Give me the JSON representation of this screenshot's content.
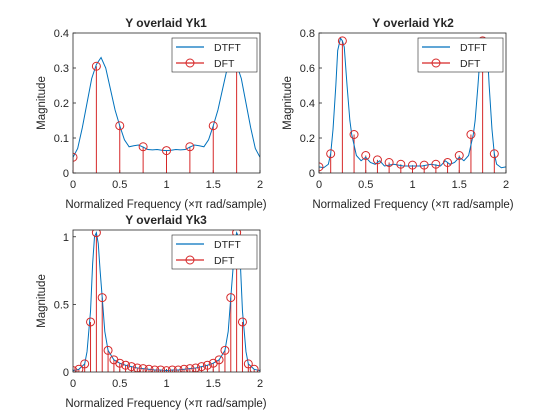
{
  "chart_data": [
    {
      "type": "line",
      "title": "Y overlaid Yk1",
      "xlabel": "Normalized Frequency (×π rad/sample)",
      "ylabel": "Magnitude",
      "xlim": [
        0,
        2
      ],
      "ylim": [
        0,
        0.4
      ],
      "xticks": [
        0,
        0.5,
        1,
        1.5,
        2
      ],
      "xtick_labels": [
        "0",
        "0.5",
        "1",
        "1.5",
        "2"
      ],
      "yticks": [
        0,
        0.1,
        0.2,
        0.3,
        0.4
      ],
      "ytick_labels": [
        "0",
        "0.1",
        "0.2",
        "0.3",
        "0.4"
      ],
      "legend": {
        "location": "top-right",
        "entries": [
          "DTFT",
          "DFT"
        ]
      },
      "series": [
        {
          "name": "DTFT",
          "kind": "line",
          "color": "#0072BD",
          "x": [
            0,
            0.05,
            0.1,
            0.15,
            0.2,
            0.25,
            0.3,
            0.35,
            0.4,
            0.45,
            0.5,
            0.55,
            0.6,
            0.65,
            0.7,
            0.75,
            0.8,
            0.85,
            0.9,
            0.95,
            1.0,
            1.05,
            1.1,
            1.15,
            1.2,
            1.25,
            1.3,
            1.35,
            1.4,
            1.45,
            1.5,
            1.55,
            1.6,
            1.65,
            1.7,
            1.75,
            1.8,
            1.85,
            1.9,
            1.95,
            2.0
          ],
          "y": [
            0.045,
            0.07,
            0.13,
            0.2,
            0.27,
            0.31,
            0.33,
            0.3,
            0.24,
            0.18,
            0.135,
            0.095,
            0.075,
            0.078,
            0.08,
            0.074,
            0.067,
            0.066,
            0.067,
            0.065,
            0.064,
            0.065,
            0.067,
            0.066,
            0.067,
            0.074,
            0.08,
            0.078,
            0.075,
            0.095,
            0.135,
            0.18,
            0.24,
            0.3,
            0.33,
            0.31,
            0.27,
            0.2,
            0.13,
            0.07,
            0.045
          ]
        },
        {
          "name": "DFT",
          "kind": "stem",
          "color": "#D62728",
          "x": [
            0,
            0.25,
            0.5,
            0.75,
            1.0,
            1.25,
            1.5,
            1.75
          ],
          "y": [
            0.045,
            0.305,
            0.135,
            0.075,
            0.064,
            0.075,
            0.135,
            0.305
          ]
        }
      ]
    },
    {
      "type": "line",
      "title": "Y overlaid Yk2",
      "xlabel": "Normalized Frequency (×π rad/sample)",
      "ylabel": "Magnitude",
      "xlim": [
        0,
        2
      ],
      "ylim": [
        0,
        0.8
      ],
      "xticks": [
        0,
        0.5,
        1,
        1.5,
        2
      ],
      "xtick_labels": [
        "0",
        "0.5",
        "1",
        "1.5",
        "2"
      ],
      "yticks": [
        0,
        0.2,
        0.4,
        0.6,
        0.8
      ],
      "ytick_labels": [
        "0",
        "0.2",
        "0.4",
        "0.6",
        "0.8"
      ],
      "legend": {
        "location": "top-right",
        "entries": [
          "DTFT",
          "DFT"
        ]
      },
      "series": [
        {
          "name": "DTFT",
          "kind": "line",
          "color": "#0072BD",
          "x": [
            0,
            0.05,
            0.1,
            0.125,
            0.15,
            0.18,
            0.2,
            0.23,
            0.25,
            0.27,
            0.3,
            0.33,
            0.35,
            0.4,
            0.45,
            0.5,
            0.55,
            0.6,
            0.65,
            0.7,
            0.8,
            0.9,
            1.0,
            1.1,
            1.2,
            1.3,
            1.35,
            1.4,
            1.45,
            1.5,
            1.55,
            1.6,
            1.65,
            1.67,
            1.7,
            1.73,
            1.75,
            1.77,
            1.8,
            1.82,
            1.85,
            1.875,
            1.9,
            1.95,
            2.0
          ],
          "y": [
            0.035,
            0.03,
            0.05,
            0.11,
            0.25,
            0.5,
            0.7,
            0.77,
            0.755,
            0.72,
            0.5,
            0.3,
            0.22,
            0.1,
            0.07,
            0.09,
            0.06,
            0.05,
            0.07,
            0.04,
            0.05,
            0.04,
            0.04,
            0.04,
            0.05,
            0.04,
            0.07,
            0.05,
            0.06,
            0.09,
            0.07,
            0.1,
            0.22,
            0.3,
            0.5,
            0.72,
            0.755,
            0.77,
            0.7,
            0.5,
            0.25,
            0.11,
            0.05,
            0.03,
            0.035
          ]
        },
        {
          "name": "DFT",
          "kind": "stem",
          "color": "#D62728",
          "x": [
            0,
            0.125,
            0.25,
            0.375,
            0.5,
            0.625,
            0.75,
            0.875,
            1.0,
            1.125,
            1.25,
            1.375,
            1.5,
            1.625,
            1.75,
            1.875
          ],
          "y": [
            0.035,
            0.11,
            0.755,
            0.22,
            0.1,
            0.075,
            0.06,
            0.05,
            0.045,
            0.045,
            0.05,
            0.06,
            0.1,
            0.22,
            0.755,
            0.11
          ]
        }
      ]
    },
    {
      "type": "line",
      "title": "Y overlaid Yk3",
      "xlabel": "Normalized Frequency (×π rad/sample)",
      "ylabel": "Magnitude",
      "xlim": [
        0,
        2
      ],
      "ylim": [
        0,
        1.05
      ],
      "xticks": [
        0,
        0.5,
        1,
        1.5,
        2
      ],
      "xtick_labels": [
        "0",
        "0.5",
        "1",
        "1.5",
        "2"
      ],
      "yticks": [
        0,
        0.5,
        1
      ],
      "ytick_labels": [
        "0",
        "0.5",
        "1"
      ],
      "legend": {
        "location": "top-right",
        "entries": [
          "DTFT",
          "DFT"
        ]
      },
      "series": [
        {
          "name": "DTFT",
          "kind": "line",
          "color": "#0072BD",
          "x": [
            0,
            0.0625,
            0.125,
            0.15,
            0.1875,
            0.21,
            0.23,
            0.25,
            0.27,
            0.29,
            0.3125,
            0.34,
            0.375,
            0.4375,
            0.5,
            0.5625,
            0.625,
            0.6875,
            0.75,
            0.8125,
            0.875,
            0.9375,
            1.0,
            1.0625,
            1.125,
            1.1875,
            1.25,
            1.3125,
            1.375,
            1.4375,
            1.5,
            1.5625,
            1.625,
            1.66,
            1.6875,
            1.71,
            1.73,
            1.75,
            1.77,
            1.79,
            1.8125,
            1.85,
            1.875,
            1.9375,
            2.0
          ],
          "y": [
            0.01,
            0.02,
            0.06,
            0.15,
            0.45,
            0.8,
            1.0,
            1.03,
            0.95,
            0.75,
            0.55,
            0.3,
            0.16,
            0.09,
            0.065,
            0.05,
            0.04,
            0.03,
            0.025,
            0.02,
            0.015,
            0.015,
            0.01,
            0.015,
            0.015,
            0.02,
            0.025,
            0.03,
            0.04,
            0.05,
            0.065,
            0.09,
            0.16,
            0.3,
            0.55,
            0.75,
            0.95,
            1.03,
            1.0,
            0.8,
            0.45,
            0.15,
            0.06,
            0.02,
            0.01
          ]
        },
        {
          "name": "DFT",
          "kind": "stem",
          "color": "#D62728",
          "x": [
            0,
            0.0625,
            0.125,
            0.1875,
            0.25,
            0.3125,
            0.375,
            0.4375,
            0.5,
            0.5625,
            0.625,
            0.6875,
            0.75,
            0.8125,
            0.875,
            0.9375,
            1.0,
            1.0625,
            1.125,
            1.1875,
            1.25,
            1.3125,
            1.375,
            1.4375,
            1.5,
            1.5625,
            1.625,
            1.6875,
            1.75,
            1.8125,
            1.875,
            1.9375
          ],
          "y": [
            0.01,
            0.02,
            0.06,
            0.37,
            1.03,
            0.55,
            0.16,
            0.09,
            0.065,
            0.05,
            0.04,
            0.03,
            0.025,
            0.02,
            0.015,
            0.015,
            0.01,
            0.015,
            0.015,
            0.02,
            0.025,
            0.03,
            0.04,
            0.05,
            0.065,
            0.09,
            0.16,
            0.55,
            1.03,
            0.37,
            0.06,
            0.02
          ]
        }
      ]
    }
  ]
}
